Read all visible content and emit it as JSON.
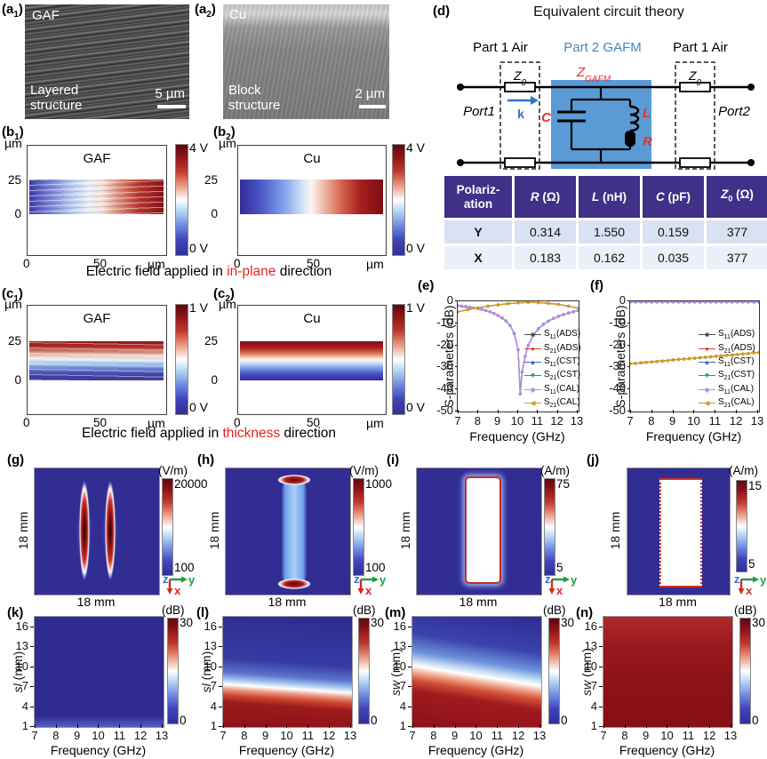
{
  "colors": {
    "map_bg": "#312d93",
    "dark_red": "#8c1218",
    "accent_red": "#e8312a",
    "gafm_blue": "#5b9bd5",
    "table_header": "#3f3187"
  },
  "axes_glyph": {
    "z": "z",
    "y": "y",
    "x": "x"
  },
  "sem": [
    {
      "pre": "(a",
      "sub": "1",
      "post": ")",
      "material": "GAF",
      "line1": "Layered",
      "line2": "structure",
      "scale": "5 µm"
    },
    {
      "pre": "(a",
      "sub": "2",
      "post": ")",
      "material": "Cu",
      "line1": "Block",
      "line2": "structure",
      "scale": "2 µm"
    }
  ],
  "vrows": [
    {
      "p1_pre": "(b",
      "p1_sub": "1",
      "p1_post": ")",
      "p1_title": "GAF",
      "p2_pre": "(b",
      "p2_sub": "2",
      "p2_post": ")",
      "p2_title": "Cu",
      "cmax": "4 V",
      "cmin": "0 V",
      "yunit": "µm",
      "ytick_top": "25",
      "ytick_bot": "0",
      "xtick0": "0",
      "xtick1": "50",
      "xunit": "µm",
      "caption_pre": "Electric field applied in ",
      "caption_red": "in-plane",
      "caption_post": " direction"
    },
    {
      "p1_pre": "(c",
      "p1_sub": "1",
      "p1_post": ")",
      "p1_title": "GAF",
      "p2_pre": "(c",
      "p2_sub": "2",
      "p2_post": ")",
      "p2_title": "Cu",
      "cmax": "1 V",
      "cmin": "0 V",
      "yunit": "µm",
      "ytick_top": "25",
      "ytick_bot": "0",
      "xtick0": "0",
      "xtick1": "50",
      "xunit": "µm",
      "caption_pre": "Electric field applied in ",
      "caption_red": "thickness",
      "caption_post": " direction"
    }
  ],
  "circuit": {
    "label": "(d)",
    "title": "Equivalent circuit theory",
    "part_left": "Part 1 Air",
    "part_mid": "Part 2 GAFM",
    "part_right": "Part 1 Air",
    "z0": "Z",
    "z0sub": "0",
    "zg": "Z",
    "zgsub": "GAFM",
    "port1": "Port1",
    "port2": "Port2",
    "k": "k",
    "c": "C",
    "l": "L",
    "r": "R"
  },
  "table": {
    "h0_line1": "Polariz-",
    "h0_line2": "ation",
    "h1_sym": "R",
    "h1_unit": " (Ω)",
    "h2_sym": "L",
    "h2_unit": " (nH)",
    "h3_sym": "C",
    "h3_unit": " (pF)",
    "h4_sym": "Z",
    "h4_sub": "0",
    "h4_unit": " (Ω)",
    "rows": [
      {
        "pol": "Y",
        "r": "0.314",
        "l": "1.550",
        "c": "0.159",
        "z0": "377"
      },
      {
        "pol": "X",
        "r": "0.183",
        "l": "0.162",
        "c": "0.035",
        "z0": "377"
      }
    ]
  },
  "chart_data": [
    {
      "id": "e",
      "panel_label": "(e)",
      "type": "line",
      "xlabel": "Frequency (GHz)",
      "ylabel": "S-parameters (dB)",
      "xlim": [
        7,
        13
      ],
      "ylim": [
        -50,
        0
      ],
      "xticks": [
        "7",
        "8",
        "9",
        "10",
        "11",
        "12",
        "13"
      ],
      "yticks": [
        "0",
        "-10",
        "-20",
        "-30",
        "-40",
        "-50"
      ],
      "legend_position": "right-middle",
      "grid": false,
      "curves": {
        "s11": {
          "x": [
            7,
            7.2,
            7.4,
            7.6,
            7.8,
            8,
            8.2,
            8.4,
            8.6,
            8.8,
            9,
            9.2,
            9.4,
            9.6,
            9.8,
            10,
            10.1,
            10.2,
            10.35,
            10.5,
            10.75,
            11,
            11.25,
            11.5,
            11.75,
            12,
            12.25,
            12.5,
            12.75,
            13
          ],
          "y": [
            -2,
            -2.2,
            -2.4,
            -2.7,
            -3,
            -3.3,
            -3.7,
            -4.2,
            -4.8,
            -5.5,
            -6.4,
            -7.5,
            -9,
            -11,
            -14.5,
            -22,
            -42,
            -32,
            -25,
            -20,
            -15.5,
            -12.5,
            -10.5,
            -9,
            -7.8,
            -6.8,
            -6,
            -5.3,
            -4.7,
            -4.2
          ]
        },
        "s21": {
          "x": [
            7,
            7.5,
            8,
            8.5,
            9,
            9.5,
            10,
            10.5,
            11,
            11.5,
            12,
            12.5,
            13
          ],
          "y": [
            -4.8,
            -3.8,
            -3,
            -2.2,
            -1.6,
            -1.1,
            -0.7,
            -0.5,
            -0.6,
            -0.9,
            -1.4,
            -2.2,
            -3.2
          ]
        }
      },
      "series": [
        {
          "name": "S11(ADS)",
          "color": "#4d4d4d",
          "curve": "s11",
          "marker": "■"
        },
        {
          "name": "S21(ADS)",
          "color": "#e03c31",
          "curve": "s21",
          "marker": "●"
        },
        {
          "name": "S11(CST)",
          "color": "#2f6fce",
          "curve": "s11",
          "marker": "▲"
        },
        {
          "name": "S21(CST)",
          "color": "#2c9b51",
          "curve": "s21",
          "marker": "▼"
        },
        {
          "name": "S11(CAL)",
          "color": "#b78be0",
          "curve": "s11",
          "marker": "◆"
        },
        {
          "name": "S21(CAL)",
          "color": "#d49a1e",
          "curve": "s21",
          "marker": "◀"
        }
      ]
    },
    {
      "id": "f",
      "panel_label": "(f)",
      "type": "line",
      "xlabel": "Frequency (GHz)",
      "ylabel": "S-parameters (dB)",
      "xlim": [
        7,
        13
      ],
      "ylim": [
        -50,
        0
      ],
      "xticks": [
        "7",
        "8",
        "9",
        "10",
        "11",
        "12",
        "13"
      ],
      "yticks": [
        "0",
        "-10",
        "-20",
        "-30",
        "-40",
        "-50"
      ],
      "legend_position": "right-middle",
      "grid": false,
      "curves": {
        "s11": {
          "x": [
            7,
            7.25,
            7.5,
            7.75,
            8,
            8.25,
            8.5,
            8.75,
            9,
            9.25,
            9.5,
            9.75,
            10,
            10.25,
            10.5,
            10.75,
            11,
            11.25,
            11.5,
            11.75,
            12,
            12.25,
            12.5,
            12.75,
            13
          ],
          "y": [
            -0.35,
            -0.35,
            -0.35,
            -0.35,
            -0.35,
            -0.35,
            -0.35,
            -0.35,
            -0.35,
            -0.35,
            -0.35,
            -0.35,
            -0.35,
            -0.35,
            -0.35,
            -0.35,
            -0.35,
            -0.35,
            -0.35,
            -0.35,
            -0.35,
            -0.35,
            -0.35,
            -0.35,
            -0.35
          ]
        },
        "s21": {
          "x": [
            7,
            7.25,
            7.5,
            7.75,
            8,
            8.25,
            8.5,
            8.75,
            9,
            9.25,
            9.5,
            9.75,
            10,
            10.25,
            10.5,
            10.75,
            11,
            11.25,
            11.5,
            11.75,
            12,
            12.25,
            12.5,
            12.75,
            13
          ],
          "y": [
            -28.4,
            -28.2,
            -27.9,
            -27.7,
            -27.5,
            -27.3,
            -27.1,
            -26.9,
            -26.6,
            -26.4,
            -26.2,
            -26,
            -25.8,
            -25.6,
            -25.4,
            -25.2,
            -24.9,
            -24.7,
            -24.5,
            -24.3,
            -24.1,
            -23.9,
            -23.7,
            -23.4,
            -23.2
          ]
        }
      },
      "series": [
        {
          "name": "S11(ADS)",
          "color": "#4d4d4d",
          "curve": "s11",
          "marker": "■"
        },
        {
          "name": "S21(ADS)",
          "color": "#e03c31",
          "curve": "s21",
          "marker": "●"
        },
        {
          "name": "S11(CST)",
          "color": "#2f6fce",
          "curve": "s11",
          "marker": "▲"
        },
        {
          "name": "S21(CST)",
          "color": "#2c9b51",
          "curve": "s21",
          "marker": "▼"
        },
        {
          "name": "S11(CAL)",
          "color": "#b78be0",
          "curve": "s11",
          "marker": "◆"
        },
        {
          "name": "S21(CAL)",
          "color": "#d49a1e",
          "curve": "s21",
          "marker": "◀"
        }
      ]
    }
  ],
  "field_maps": [
    {
      "label": "(g)",
      "unit": "(V/m)",
      "cmax": "20000",
      "cmin": "100",
      "xlabel": "18 mm",
      "ylabel": "18 mm"
    },
    {
      "label": "(h)",
      "unit": "(V/m)",
      "cmax": "1000",
      "cmin": "100",
      "xlabel": "18 mm",
      "ylabel": "18 mm"
    },
    {
      "label": "(i)",
      "unit": "(A/m)",
      "cmax": "75",
      "cmin": "5",
      "xlabel": "18 mm",
      "ylabel": "18 mm"
    },
    {
      "label": "(j)",
      "unit": "(A/m)",
      "cmax": "15",
      "cmin": "5",
      "xlabel": "18 mm",
      "ylabel": "18 mm"
    }
  ],
  "heatmaps": [
    {
      "label": "(k)",
      "ylabel_sym": "sl",
      "ylabel_unit": " (mm)",
      "yticks": [
        "16",
        "13",
        "10",
        "7",
        "4",
        "1"
      ],
      "xticks": [
        "7",
        "8",
        "9",
        "10",
        "11",
        "12",
        "13"
      ],
      "xlabel": "Frequency (GHz)",
      "cunit": "(dB)",
      "cmax": "30",
      "cmin": "0"
    },
    {
      "label": "(l)",
      "ylabel_sym": "sl",
      "ylabel_unit": " (mm)",
      "yticks": [
        "16",
        "13",
        "10",
        "7",
        "4",
        "1"
      ],
      "xticks": [
        "7",
        "8",
        "9",
        "10",
        "11",
        "12",
        "13"
      ],
      "xlabel": "Frequency (GHz)",
      "cunit": "(dB)",
      "cmax": "30",
      "cmin": "0"
    },
    {
      "label": "(m)",
      "ylabel_sym": "sw",
      "ylabel_unit": " (mm)",
      "yticks": [
        "16",
        "13",
        "10",
        "7",
        "4",
        "1"
      ],
      "xticks": [
        "7",
        "8",
        "9",
        "10",
        "11",
        "12",
        "13"
      ],
      "xlabel": "Frequency (GHz)",
      "cunit": "(dB)",
      "cmax": "30",
      "cmin": "0"
    },
    {
      "label": "(n)",
      "ylabel_sym": "sw",
      "ylabel_unit": " (mm)",
      "yticks": [
        "16",
        "13",
        "10",
        "7",
        "4",
        "1"
      ],
      "xticks": [
        "7",
        "8",
        "9",
        "10",
        "11",
        "12",
        "13"
      ],
      "xlabel": "Frequency (GHz)",
      "cunit": "(dB)",
      "cmax": "30",
      "cmin": "0"
    }
  ]
}
